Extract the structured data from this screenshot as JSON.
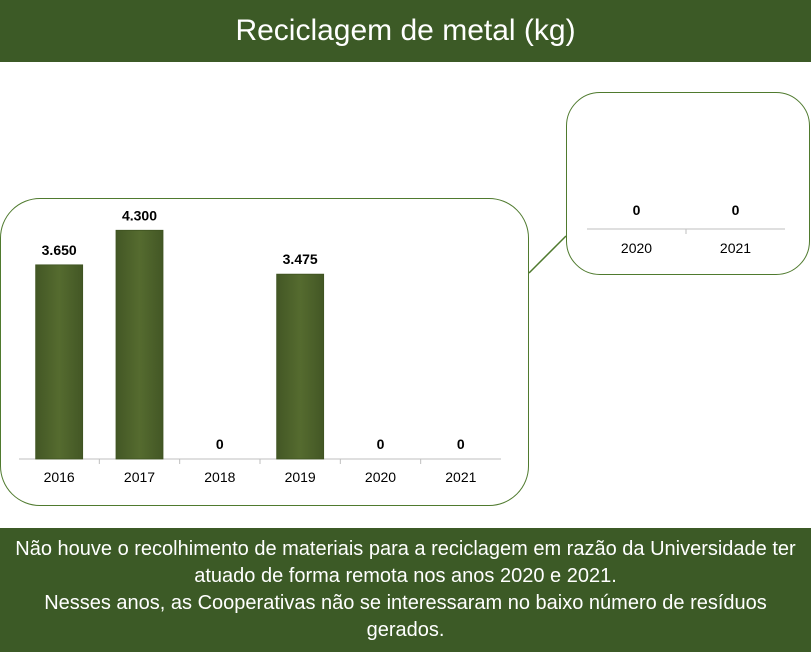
{
  "header": {
    "title": "Reciclagem de metal (kg)"
  },
  "colors": {
    "header_bg": "#3c5a26",
    "bar": "#556b2f",
    "panel_border": "#4f7a2e"
  },
  "chart_data": {
    "type": "bar",
    "title": "Reciclagem de metal (kg)",
    "categories": [
      "2016",
      "2017",
      "2018",
      "2019",
      "2020",
      "2021"
    ],
    "values": [
      3650,
      4300,
      0,
      3475,
      0,
      0
    ],
    "value_labels": [
      "3.650",
      "4.300",
      "0",
      "3.475",
      "0",
      "0"
    ],
    "ylim": [
      0,
      4700
    ],
    "grid": false,
    "zoom_inset": {
      "categories": [
        "2020",
        "2021"
      ],
      "value_labels": [
        "0",
        "0"
      ]
    }
  },
  "footer": {
    "line1": "Não houve o recolhimento de materiais para a reciclagem em razão da Universidade ter atuado de forma remota nos anos 2020 e 2021.",
    "line2": "Nesses anos, as Cooperativas não se interessaram no baixo número de resíduos gerados."
  }
}
